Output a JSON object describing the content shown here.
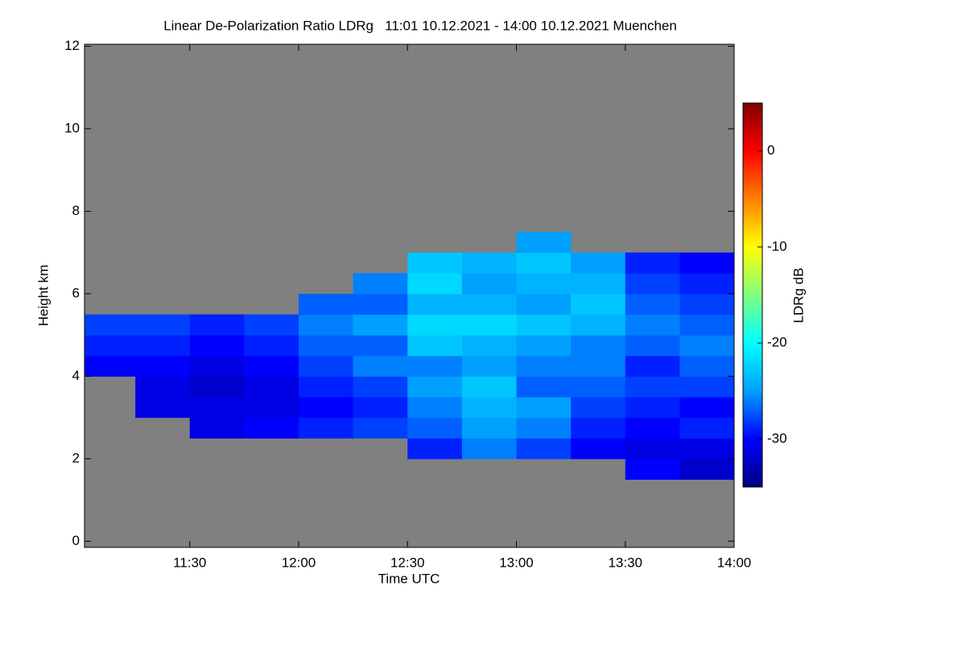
{
  "chart_data": {
    "type": "heatmap",
    "title": "Linear De-Polarization Ratio LDRg   11:01 10.12.2021 - 14:00 10.12.2021 Muenchen",
    "x_label": "Time UTC",
    "y_label": "Height km",
    "colorbar_label": "LDRg dB",
    "x": [
      11.0,
      11.25,
      11.5,
      11.75,
      12.0,
      12.25,
      12.5,
      12.75,
      13.0,
      13.25,
      13.5,
      13.75
    ],
    "y": [
      0,
      0.5,
      1,
      1.5,
      2,
      2.5,
      3,
      3.5,
      4,
      4.5,
      5,
      5.5,
      6,
      6.5,
      7,
      7.5
    ],
    "z": [
      [
        null,
        null,
        null,
        null,
        null,
        null,
        null,
        null,
        null,
        null,
        null,
        null
      ],
      [
        null,
        null,
        null,
        null,
        null,
        null,
        null,
        null,
        null,
        null,
        null,
        null
      ],
      [
        null,
        null,
        null,
        null,
        null,
        null,
        null,
        null,
        null,
        null,
        null,
        null
      ],
      [
        null,
        null,
        null,
        null,
        null,
        null,
        null,
        null,
        null,
        null,
        -30,
        -32
      ],
      [
        null,
        null,
        null,
        null,
        null,
        null,
        -29,
        -26,
        -28,
        -30,
        -31,
        -31
      ],
      [
        null,
        null,
        -31,
        -30,
        -29,
        -28,
        -27,
        -25,
        -26,
        -29,
        -30,
        -29
      ],
      [
        null,
        -31,
        -31,
        -31,
        -30,
        -29,
        -26,
        -24,
        -25,
        -28,
        -29,
        -30
      ],
      [
        null,
        -31,
        -32,
        -31,
        -29,
        -28,
        -25,
        -23,
        -27,
        -27,
        -28,
        -28
      ],
      [
        -30,
        -30,
        -31,
        -30,
        -28,
        -26,
        -26,
        -25,
        -26,
        -26,
        -29,
        -27
      ],
      [
        -29,
        -29,
        -30,
        -29,
        -27,
        -27,
        -23,
        -24,
        -25,
        -26,
        -27,
        -26
      ],
      [
        -28,
        -28,
        -29,
        -28,
        -26,
        -25,
        -22,
        -22,
        -23,
        -24,
        -26,
        -27
      ],
      [
        null,
        null,
        null,
        null,
        -27,
        -27,
        -24,
        -24,
        -25,
        -23,
        -27,
        -28
      ],
      [
        null,
        null,
        null,
        null,
        null,
        -26,
        -22,
        -25,
        -24,
        -24,
        -28,
        -29
      ],
      [
        null,
        null,
        null,
        null,
        null,
        null,
        -23,
        -24,
        -23,
        -25,
        -29,
        -30
      ],
      [
        null,
        null,
        null,
        null,
        null,
        null,
        null,
        null,
        -25,
        null,
        null,
        null
      ],
      [
        null,
        null,
        null,
        null,
        null,
        null,
        null,
        null,
        null,
        null,
        null,
        null
      ]
    ],
    "xlim": [
      11.0167,
      14.0
    ],
    "xticks": [
      {
        "value": 11.5,
        "label": "11:30"
      },
      {
        "value": 12.0,
        "label": "12:00"
      },
      {
        "value": 12.5,
        "label": "12:30"
      },
      {
        "value": 13.0,
        "label": "13:00"
      },
      {
        "value": 13.5,
        "label": "13:30"
      },
      {
        "value": 14.0,
        "label": "14:00"
      }
    ],
    "ylim": [
      -0.15,
      12.05
    ],
    "yticks": [
      0,
      2,
      4,
      6,
      8,
      10,
      12
    ],
    "clim": [
      -35,
      5
    ],
    "cticks": [
      0,
      -10,
      -20,
      -30
    ],
    "colorscale": [
      "#00007f",
      "#0000ff",
      "#00a0ff",
      "#00ffff",
      "#80ff80",
      "#ffff00",
      "#ff8000",
      "#ff0000",
      "#7f0000"
    ],
    "background": "#808080"
  }
}
